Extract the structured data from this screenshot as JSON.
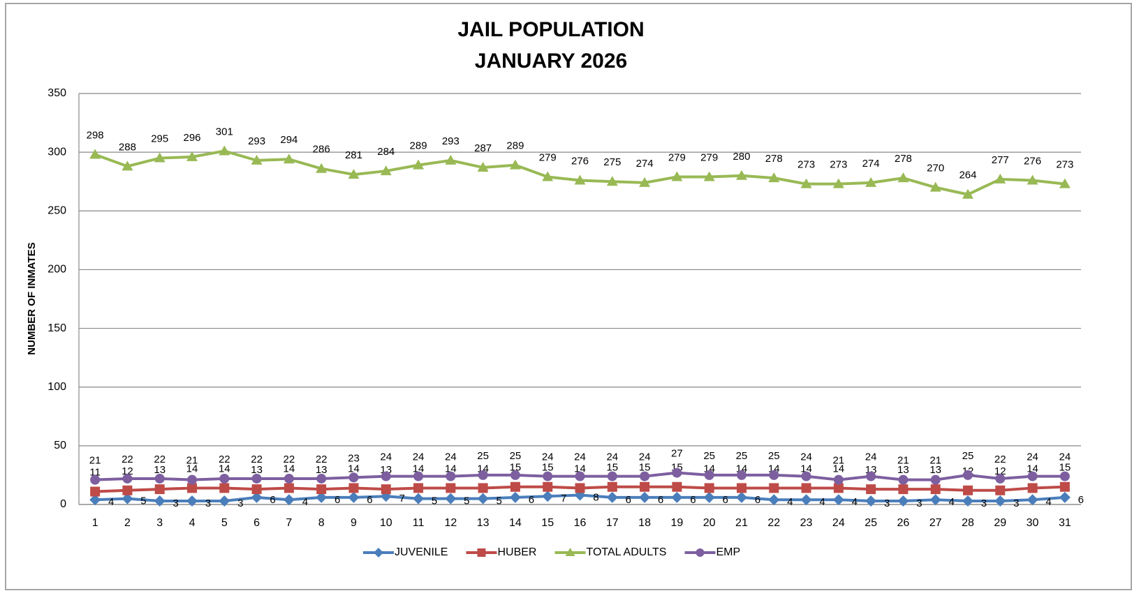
{
  "chart_data": {
    "type": "line",
    "title": "JAIL POPULATION",
    "subtitle": "JANUARY 2026",
    "y_label": "NUMBER OF INMATES",
    "categories": [
      "1",
      "2",
      "3",
      "4",
      "5",
      "6",
      "7",
      "8",
      "9",
      "10",
      "11",
      "12",
      "13",
      "14",
      "15",
      "16",
      "17",
      "18",
      "19",
      "20",
      "21",
      "22",
      "23",
      "24",
      "25",
      "26",
      "27",
      "28",
      "29",
      "30",
      "31"
    ],
    "series": [
      {
        "name": "JUVENILE",
        "color": "#4a7ebb",
        "marker": "diamond",
        "values": [
          4,
          5,
          3,
          3,
          3,
          6,
          4,
          6,
          6,
          7,
          5,
          5,
          5,
          6,
          7,
          8,
          6,
          6,
          6,
          6,
          6,
          4,
          4,
          4,
          3,
          3,
          4,
          3,
          3,
          4,
          6
        ]
      },
      {
        "name": "HUBER",
        "color": "#be4b48",
        "marker": "square",
        "values": [
          11,
          12,
          13,
          14,
          14,
          13,
          14,
          13,
          14,
          13,
          14,
          14,
          14,
          15,
          15,
          14,
          15,
          15,
          15,
          14,
          14,
          14,
          14,
          14,
          13,
          13,
          13,
          12,
          12,
          14,
          15
        ]
      },
      {
        "name": "TOTAL ADULTS",
        "color": "#98b954",
        "marker": "triangle",
        "values": [
          298,
          288,
          295,
          296,
          301,
          293,
          294,
          286,
          281,
          284,
          289,
          293,
          287,
          289,
          279,
          276,
          275,
          274,
          279,
          279,
          280,
          278,
          273,
          273,
          274,
          278,
          270,
          264,
          277,
          276,
          273
        ]
      },
      {
        "name": "EMP",
        "color": "#7d5fa0",
        "marker": "circle",
        "values": [
          21,
          22,
          22,
          21,
          22,
          22,
          22,
          22,
          23,
          24,
          24,
          24,
          25,
          25,
          24,
          24,
          24,
          24,
          27,
          25,
          25,
          25,
          24,
          21,
          24,
          21,
          21,
          25,
          22,
          24,
          24
        ]
      }
    ],
    "ylim": [
      0,
      350
    ],
    "yticks": [
      0,
      50,
      100,
      150,
      200,
      250,
      300,
      350
    ],
    "grid": true,
    "legend": "bottom"
  }
}
